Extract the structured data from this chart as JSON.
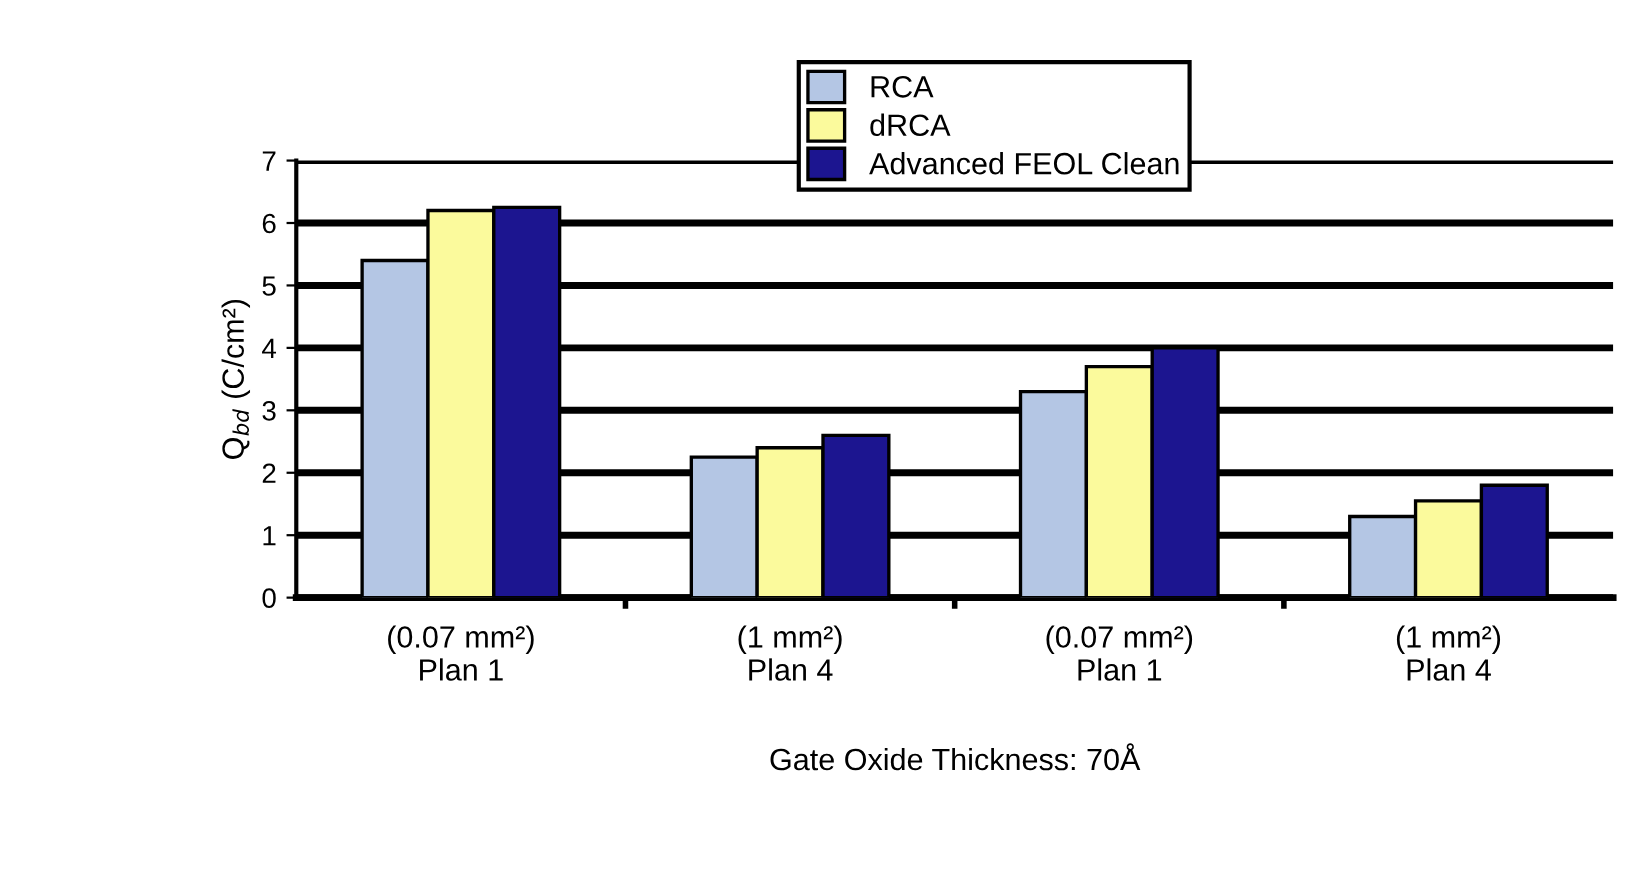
{
  "chart_data": {
    "type": "bar",
    "categories": [
      "(0.07 mm²)\nPlan 1",
      "(1 mm²)\nPlan 4",
      "(0.07 mm²)\nPlan 1",
      "(1 mm²)\nPlan 4"
    ],
    "series": [
      {
        "name": "RCA",
        "color": "#b4c6e4",
        "values": [
          5.4,
          2.25,
          3.3,
          1.3
        ]
      },
      {
        "name": "dRCA",
        "color": "#fbfa9c",
        "values": [
          6.2,
          2.4,
          3.7,
          1.55
        ]
      },
      {
        "name": "Advanced FEOL Clean",
        "color": "#1c1590",
        "values": [
          6.25,
          2.6,
          4.0,
          1.8
        ]
      }
    ],
    "xlabel": "Gate Oxide Thickness: 70Å",
    "ylabel": "Q$_{bd}$ (C/cm²)",
    "ylim": [
      0,
      7
    ],
    "yticks": [
      0,
      1,
      2,
      3,
      4,
      5,
      6,
      7
    ],
    "grid": "y",
    "legend": "top"
  }
}
